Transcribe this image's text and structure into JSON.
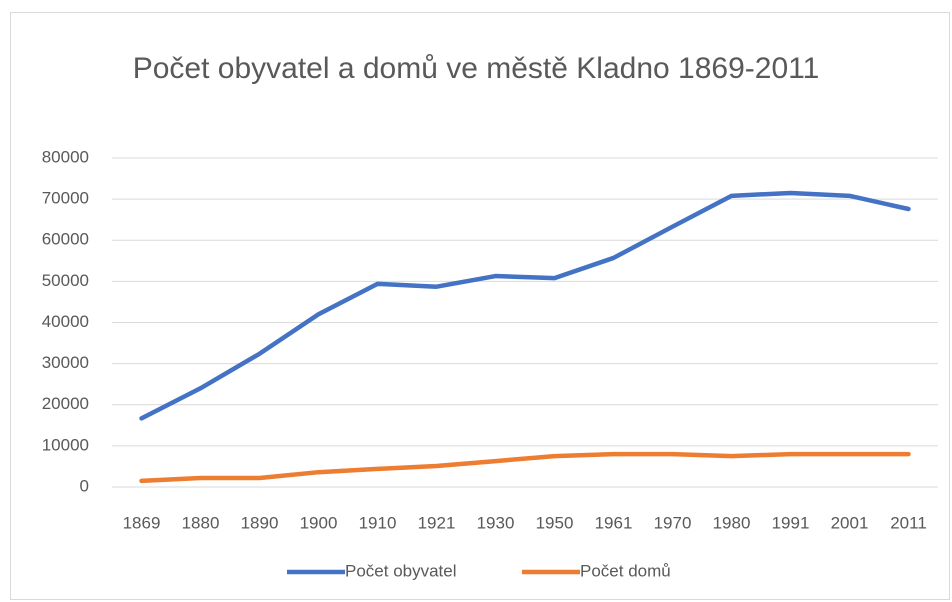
{
  "chart_data": {
    "type": "line",
    "title": "Počet obyvatel a domů ve městě Kladno 1869-2011",
    "categories": [
      "1869",
      "1880",
      "1890",
      "1900",
      "1910",
      "1921",
      "1930",
      "1950",
      "1961",
      "1970",
      "1980",
      "1991",
      "2001",
      "2011"
    ],
    "series": [
      {
        "name": "Počet obyvatel",
        "color": "#4472c4",
        "values": [
          16700,
          24000,
          32400,
          42000,
          49400,
          48700,
          51300,
          50800,
          55700,
          63300,
          70800,
          71500,
          70800,
          67600
        ]
      },
      {
        "name": "Počet domů",
        "color": "#ed7d31",
        "values": [
          1500,
          2200,
          2200,
          3600,
          4400,
          5100,
          6300,
          7500,
          8000,
          8000,
          7500,
          8000,
          8000,
          8000
        ]
      }
    ],
    "ylim": [
      0,
      80000
    ],
    "yticks": [
      0,
      10000,
      20000,
      30000,
      40000,
      50000,
      60000,
      70000,
      80000
    ],
    "grid": true,
    "legend": "bottom"
  }
}
